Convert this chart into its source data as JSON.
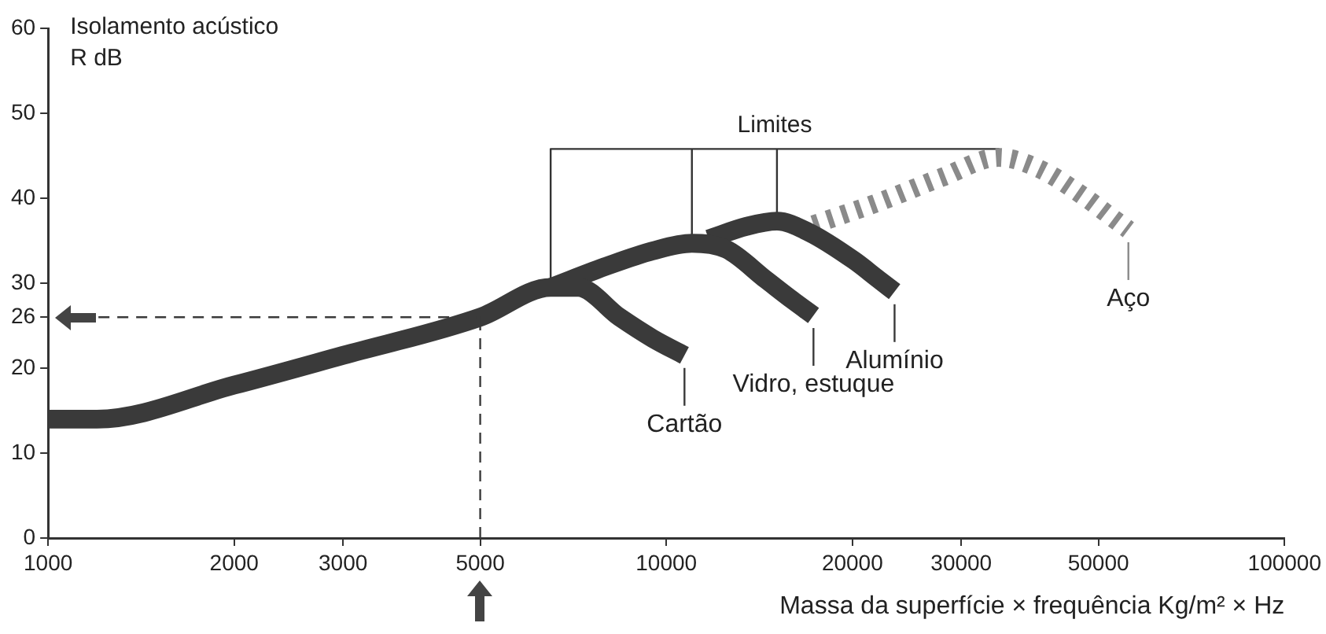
{
  "chart_data": {
    "type": "line",
    "xlabel": "Massa da superfície × frequência Kg/m² × Hz",
    "ylabel": "Isolamento acústico\nR dB",
    "log": "x",
    "xlim": [
      1000,
      100000
    ],
    "xticks": [
      1000,
      2000,
      3000,
      5000,
      10000,
      20000,
      30000,
      50000,
      100000
    ],
    "ylim": [
      0,
      60
    ],
    "yticks": [
      0,
      10,
      20,
      26,
      30,
      40,
      50,
      60
    ],
    "grid": false,
    "legend": "bottom right",
    "marker": "none",
    "series": [
      {
        "name": "Cartão",
        "color": "#3a3a3a",
        "x": [
          1000,
          1200,
          2000,
          3000,
          5000,
          6500,
          7200,
          8400,
          9500,
          10700
        ],
        "values": [
          14,
          14,
          18,
          21.5,
          26,
          29.5,
          29.5,
          26,
          23.5,
          21.5
        ]
      },
      {
        "name": "Vidro, estuque",
        "color": "#3a3a3a",
        "x": [
          6500,
          8000,
          9500,
          11000,
          12500,
          14500,
          16000,
          17300
        ],
        "values": [
          29.5,
          32,
          33.8,
          34.7,
          34,
          30.4,
          28,
          26.2
        ]
      },
      {
        "name": "Alumínio",
        "color": "#3a3a3a",
        "x": [
          11700,
          13500,
          15100,
          17000,
          20100,
          22000,
          23400
        ],
        "values": [
          35.2,
          36.7,
          37.3,
          36,
          32.7,
          30.5,
          29
        ]
      },
      {
        "name": "Aço",
        "color": "#8a8a8a",
        "line_style": "dotted",
        "x": [
          17300,
          22000,
          28000,
          34500,
          40000,
          47800,
          52000,
          55900
        ],
        "values": [
          36.9,
          39.5,
          42.5,
          44.8,
          43.5,
          40,
          38,
          36.3
        ]
      },
      {
        "color": "#333333",
        "x": [
          6500,
          6500,
          11000,
          11000,
          11000,
          15100,
          15100,
          15100,
          34500,
          34500
        ],
        "values": [
          30.5,
          45.8,
          45.8,
          35.5,
          45.8,
          45.8,
          38.2,
          45.8,
          45.8,
          45.5
        ]
      }
    ],
    "ref_lines": [
      {
        "axis": "x",
        "value": 5000,
        "line_style": "dashed",
        "color": "#3a3a3a"
      },
      {
        "axis": "y",
        "value": 26,
        "line_style": "dashed",
        "color": "#3a3a3a"
      }
    ],
    "annotations": [
      "Limites"
    ]
  }
}
